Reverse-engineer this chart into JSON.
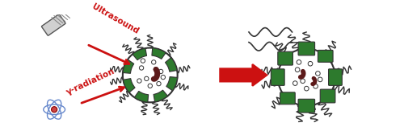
{
  "background_color": "#ffffff",
  "fig_width": 5.0,
  "fig_height": 1.63,
  "dpi": 100,
  "arrow_color": "#cc1111",
  "green_color": "#2d7a2d",
  "dark_red": "#5c1a1a",
  "ultrasound_label": "Ultrasound",
  "gamma_label": "γ-radiation",
  "label_color": "#cc1111",
  "label_fontsize": 7.5,
  "bacteria_outline": "#333333",
  "white": "#ffffff",
  "light_gray": "#f0f0f0",
  "atom_color": "#6688cc"
}
